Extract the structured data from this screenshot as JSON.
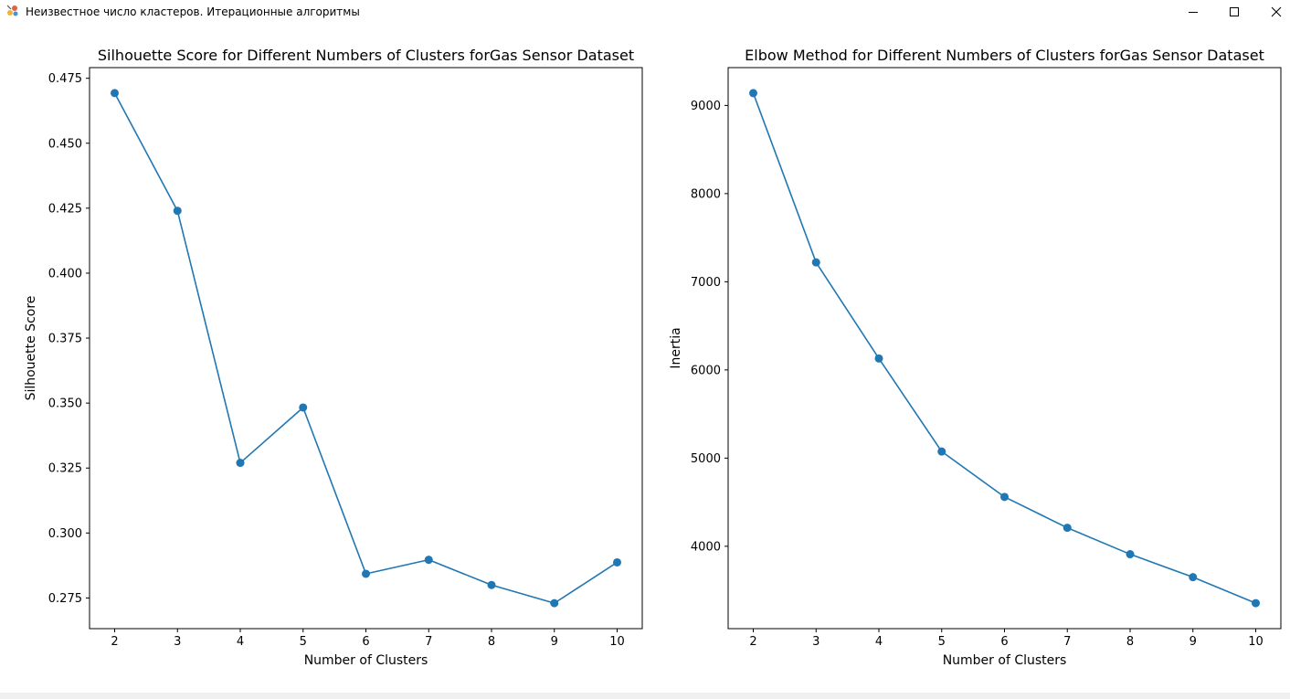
{
  "window": {
    "title": "Неизвестное число кластеров. Итерационные алгоритмы",
    "icon": "app-icon",
    "controls": [
      "minimize-icon",
      "maximize-icon",
      "close-icon"
    ]
  },
  "colors": {
    "series": "#1f77b4"
  },
  "chart_data": [
    {
      "type": "line",
      "title": "Silhouette Score for Different Numbers of Clusters forGas Sensor Dataset",
      "xlabel": "Number of Clusters",
      "ylabel": "Silhouette Score",
      "x": [
        2,
        3,
        4,
        5,
        6,
        7,
        8,
        9,
        10
      ],
      "values": [
        0.4693,
        0.424,
        0.327,
        0.3483,
        0.2843,
        0.2897,
        0.28,
        0.273,
        0.2887
      ],
      "xticks": [
        2,
        3,
        4,
        5,
        6,
        7,
        8,
        9,
        10
      ],
      "yticks": [
        0.275,
        0.3,
        0.325,
        0.35,
        0.375,
        0.4,
        0.425,
        0.45,
        0.475
      ],
      "ytick_labels": [
        "0.275",
        "0.300",
        "0.325",
        "0.350",
        "0.375",
        "0.400",
        "0.425",
        "0.450",
        "0.475"
      ],
      "xlim": [
        1.6,
        10.4
      ],
      "ylim": [
        0.2632,
        0.4791
      ],
      "marker": "circle",
      "grid": false
    },
    {
      "type": "line",
      "title": "Elbow Method for Different Numbers of Clusters forGas Sensor Dataset",
      "xlabel": "Number of Clusters",
      "ylabel": "Inertia",
      "x": [
        2,
        3,
        4,
        5,
        6,
        7,
        8,
        9,
        10
      ],
      "values": [
        9140,
        7220,
        6130,
        5075,
        4560,
        4210,
        3910,
        3650,
        3355
      ],
      "xticks": [
        2,
        3,
        4,
        5,
        6,
        7,
        8,
        9,
        10
      ],
      "yticks": [
        4000,
        5000,
        6000,
        7000,
        8000,
        9000
      ],
      "ytick_labels": [
        "4000",
        "5000",
        "6000",
        "7000",
        "8000",
        "9000"
      ],
      "xlim": [
        1.6,
        10.4
      ],
      "ylim": [
        3066,
        9429
      ],
      "marker": "circle",
      "grid": false
    }
  ]
}
